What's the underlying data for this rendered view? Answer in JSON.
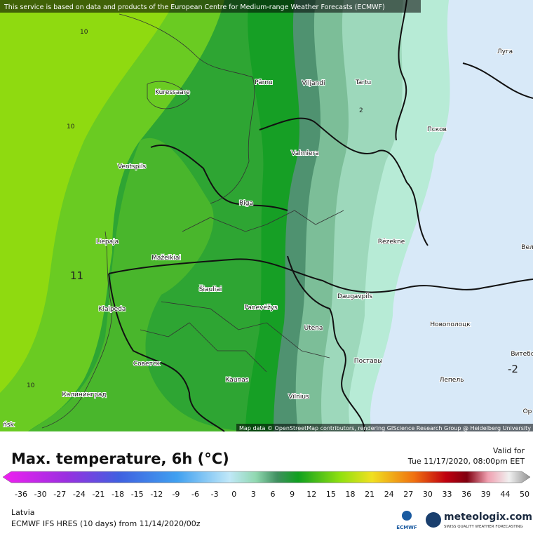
{
  "header": {
    "notice": "This service is based on data and products of the European Centre for Medium-range Weather Forecasts (ECMWF)"
  },
  "map": {
    "cities": [
      "Pärnu",
      "Viljandi",
      "Tartu",
      "Луга",
      "Kuressaare",
      "Псков",
      "Ventspils",
      "Valmiera",
      "Riga",
      "Rēzekne",
      "Liepaja",
      "Mažeikiai",
      "Šiauliai",
      "Panevėžys",
      "Daugavpils",
      "Klaipeda",
      "Utena",
      "Новополоцк",
      "Витебс",
      "Советск",
      "Поставы",
      "Kaunas",
      "Лепель",
      "Калининград",
      "Vilnius",
      "Вел",
      "Ор",
      "ńsk"
    ],
    "contour_labels": [
      "10",
      "10",
      "2",
      "11",
      "10",
      "-2"
    ],
    "attribution": "Map data © OpenStreetMap contributors, rendering GIScience Research Group @ Heidelberg University"
  },
  "legend": {
    "title": "Max. temperature, 6h (°C)",
    "valid_label": "Valid for",
    "valid_time": "Tue 11/17/2020, 08:00pm EET",
    "ticks": [
      "-36",
      "-30",
      "-27",
      "-24",
      "-21",
      "-18",
      "-15",
      "-12",
      "-9",
      "-6",
      "-3",
      "0",
      "3",
      "6",
      "9",
      "12",
      "15",
      "18",
      "21",
      "24",
      "27",
      "30",
      "33",
      "36",
      "39",
      "44",
      "50"
    ]
  },
  "footer": {
    "region": "Latvia",
    "model": "ECMWF IFS HRES (10 days) from 11/14/2020/00z",
    "ecmwf_logo": "ECMWF",
    "brand": "meteologix.com",
    "slogan": "SWISS QUALITY WEATHER FORECASTING"
  }
}
